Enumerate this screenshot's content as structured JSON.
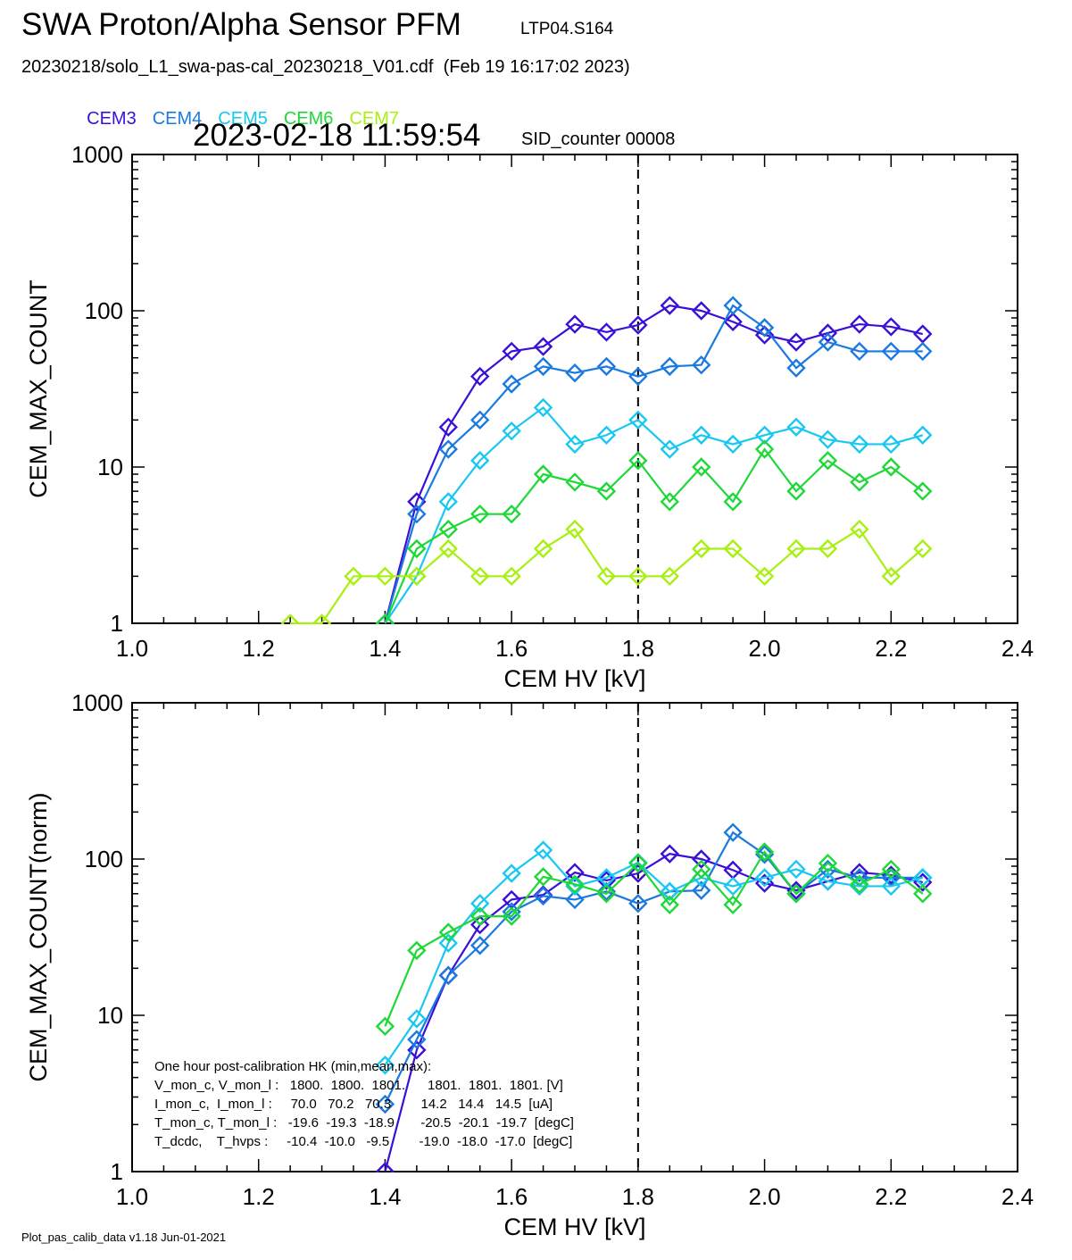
{
  "header": {
    "title": "SWA Proton/Alpha Sensor PFM",
    "run_id": "LTP04.S164",
    "file_line": "20230218/solo_L1_swa-pas-cal_20230218_V01.cdf  (Feb 19 16:17:02 2023)",
    "timestamp": "2023-02-18 11:59:54",
    "sid_counter": "SID_counter 00008"
  },
  "legend": [
    {
      "name": "CEM3",
      "color": "#3a10d8"
    },
    {
      "name": "CEM4",
      "color": "#1a7ae0"
    },
    {
      "name": "CEM5",
      "color": "#18c8f0"
    },
    {
      "name": "CEM6",
      "color": "#1ed838"
    },
    {
      "name": "CEM7",
      "color": "#a8f010"
    }
  ],
  "footer": "Plot_pas_calib_data v1.18 Jun-01-2021",
  "hk_box": {
    "lines": [
      "One hour post-calibration HK (min,mean,max):",
      "V_mon_c, V_mon_l :   1800.  1800.  1801.      1801.  1801.  1801. [V]",
      "I_mon_c,  I_mon_l :     70.0   70.2   70.3        14.2   14.4   14.5  [uA]",
      "T_mon_c, T_mon_l :   -19.6  -19.3  -18.9       -20.5  -20.1  -19.7  [degC]",
      "T_dcdc,    T_hvps :     -10.4  -10.0   -9.5        -19.0  -18.0  -17.0  [degC]"
    ]
  },
  "chart_data": [
    {
      "type": "line",
      "xlabel": "CEM HV [kV]",
      "ylabel": "CEM_MAX_COUNT",
      "xlim": [
        1.0,
        2.4
      ],
      "ylim": [
        1,
        1000
      ],
      "yscale": "log",
      "xticks": [
        "1.0",
        "1.2",
        "1.4",
        "1.6",
        "1.8",
        "2.0",
        "2.2",
        "2.4"
      ],
      "yticks": [
        "1",
        "10",
        "100",
        "1000"
      ],
      "vline_x": 1.8,
      "series": [
        {
          "name": "CEM3",
          "color": "#3a10d8",
          "x": [
            1.4,
            1.45,
            1.5,
            1.55,
            1.6,
            1.65,
            1.7,
            1.75,
            1.8,
            1.85,
            1.9,
            1.95,
            2.0,
            2.05,
            2.1,
            2.15,
            2.2,
            2.25
          ],
          "y": [
            1,
            6,
            18,
            38,
            55,
            59,
            82,
            73,
            81,
            108,
            100,
            85,
            70,
            63,
            72,
            82,
            79,
            71
          ]
        },
        {
          "name": "CEM4",
          "color": "#1a7ae0",
          "x": [
            1.4,
            1.45,
            1.5,
            1.55,
            1.6,
            1.65,
            1.7,
            1.75,
            1.8,
            1.85,
            1.9,
            1.95,
            2.0,
            2.05,
            2.1,
            2.15,
            2.2,
            2.25
          ],
          "y": [
            1,
            5,
            13,
            20,
            34,
            44,
            40,
            44,
            38,
            44,
            45,
            108,
            78,
            43,
            63,
            55,
            55,
            55
          ]
        },
        {
          "name": "CEM5",
          "color": "#18c8f0",
          "x": [
            1.4,
            1.45,
            1.5,
            1.55,
            1.6,
            1.65,
            1.7,
            1.75,
            1.8,
            1.85,
            1.9,
            1.95,
            2.0,
            2.05,
            2.1,
            2.15,
            2.2,
            2.25
          ],
          "y": [
            1,
            2,
            6,
            11,
            17,
            24,
            14,
            16,
            20,
            13,
            16,
            14,
            16,
            18,
            15,
            14,
            14,
            16
          ]
        },
        {
          "name": "CEM6",
          "color": "#1ed838",
          "x": [
            1.4,
            1.45,
            1.5,
            1.55,
            1.6,
            1.65,
            1.7,
            1.75,
            1.8,
            1.85,
            1.9,
            1.95,
            2.0,
            2.05,
            2.1,
            2.15,
            2.2,
            2.25
          ],
          "y": [
            1,
            3,
            4,
            5,
            5,
            9,
            8,
            7,
            11,
            6,
            10,
            6,
            13,
            7,
            11,
            8,
            10,
            7
          ]
        },
        {
          "name": "CEM7",
          "color": "#a8f010",
          "x": [
            1.25,
            1.3,
            1.35,
            1.4,
            1.45,
            1.5,
            1.55,
            1.6,
            1.65,
            1.7,
            1.75,
            1.8,
            1.85,
            1.9,
            1.95,
            2.0,
            2.05,
            2.1,
            2.15,
            2.2,
            2.25
          ],
          "y": [
            1,
            1,
            2,
            2,
            2,
            3,
            2,
            2,
            3,
            4,
            2,
            2,
            2,
            3,
            3,
            2,
            3,
            3,
            4,
            2,
            3
          ]
        }
      ]
    },
    {
      "type": "line",
      "xlabel": "CEM HV [kV]",
      "ylabel": "CEM_MAX_COUNT(norm)",
      "xlim": [
        1.0,
        2.4
      ],
      "ylim": [
        1,
        1000
      ],
      "yscale": "log",
      "xticks": [
        "1.0",
        "1.2",
        "1.4",
        "1.6",
        "1.8",
        "2.0",
        "2.2",
        "2.4"
      ],
      "yticks": [
        "1",
        "10",
        "100",
        "1000"
      ],
      "vline_x": 1.8,
      "series": [
        {
          "name": "CEM3",
          "color": "#3a10d8",
          "x": [
            1.4,
            1.45,
            1.5,
            1.55,
            1.6,
            1.65,
            1.7,
            1.75,
            1.8,
            1.85,
            1.9,
            1.95,
            2.0,
            2.05,
            2.1,
            2.15,
            2.2,
            2.25
          ],
          "y": [
            1,
            6,
            18,
            38,
            55,
            59,
            82,
            73,
            81,
            108,
            100,
            85,
            70,
            63,
            72,
            82,
            79,
            71
          ]
        },
        {
          "name": "CEM4",
          "color": "#1a7ae0",
          "x": [
            1.4,
            1.45,
            1.5,
            1.55,
            1.6,
            1.65,
            1.7,
            1.75,
            1.8,
            1.85,
            1.9,
            1.95,
            2.0,
            2.05,
            2.1,
            2.15,
            2.2,
            2.25
          ],
          "y": [
            2.7,
            7,
            18,
            28,
            46,
            58,
            55,
            62,
            52,
            62,
            63,
            148,
            107,
            60,
            86,
            76,
            76,
            76
          ]
        },
        {
          "name": "CEM5",
          "color": "#18c8f0",
          "x": [
            1.4,
            1.45,
            1.5,
            1.55,
            1.6,
            1.65,
            1.7,
            1.75,
            1.8,
            1.85,
            1.9,
            1.95,
            2.0,
            2.05,
            2.1,
            2.15,
            2.2,
            2.25
          ],
          "y": [
            4.8,
            9.5,
            29,
            52,
            81,
            114,
            67,
            76,
            95,
            62,
            76,
            67,
            76,
            86,
            72,
            67,
            67,
            76
          ]
        },
        {
          "name": "CEM6",
          "color": "#1ed838",
          "x": [
            1.4,
            1.45,
            1.5,
            1.55,
            1.6,
            1.65,
            1.7,
            1.75,
            1.8,
            1.85,
            1.9,
            1.95,
            2.0,
            2.05,
            2.1,
            2.15,
            2.2,
            2.25
          ],
          "y": [
            8.5,
            26,
            34,
            43,
            43,
            77,
            69,
            60,
            94,
            51,
            86,
            51,
            111,
            60,
            94,
            69,
            86,
            60
          ]
        },
        {
          "name": "CEM7",
          "color": "#a8f010",
          "x": [
            1.25,
            1.3,
            1.35,
            1.4,
            1.45,
            1.5,
            1.55,
            1.6,
            1.65,
            1.7,
            1.75,
            1.8,
            1.85,
            1.9,
            1.95,
            2.0,
            2.05,
            2.1,
            2.15,
            2.2,
            2.25
          ],
          "y": [
            null,
            null,
            null,
            null,
            null,
            null,
            null,
            null,
            null,
            null,
            null,
            null,
            null,
            null,
            null,
            null,
            null,
            null,
            null,
            null,
            null
          ]
        }
      ]
    }
  ]
}
